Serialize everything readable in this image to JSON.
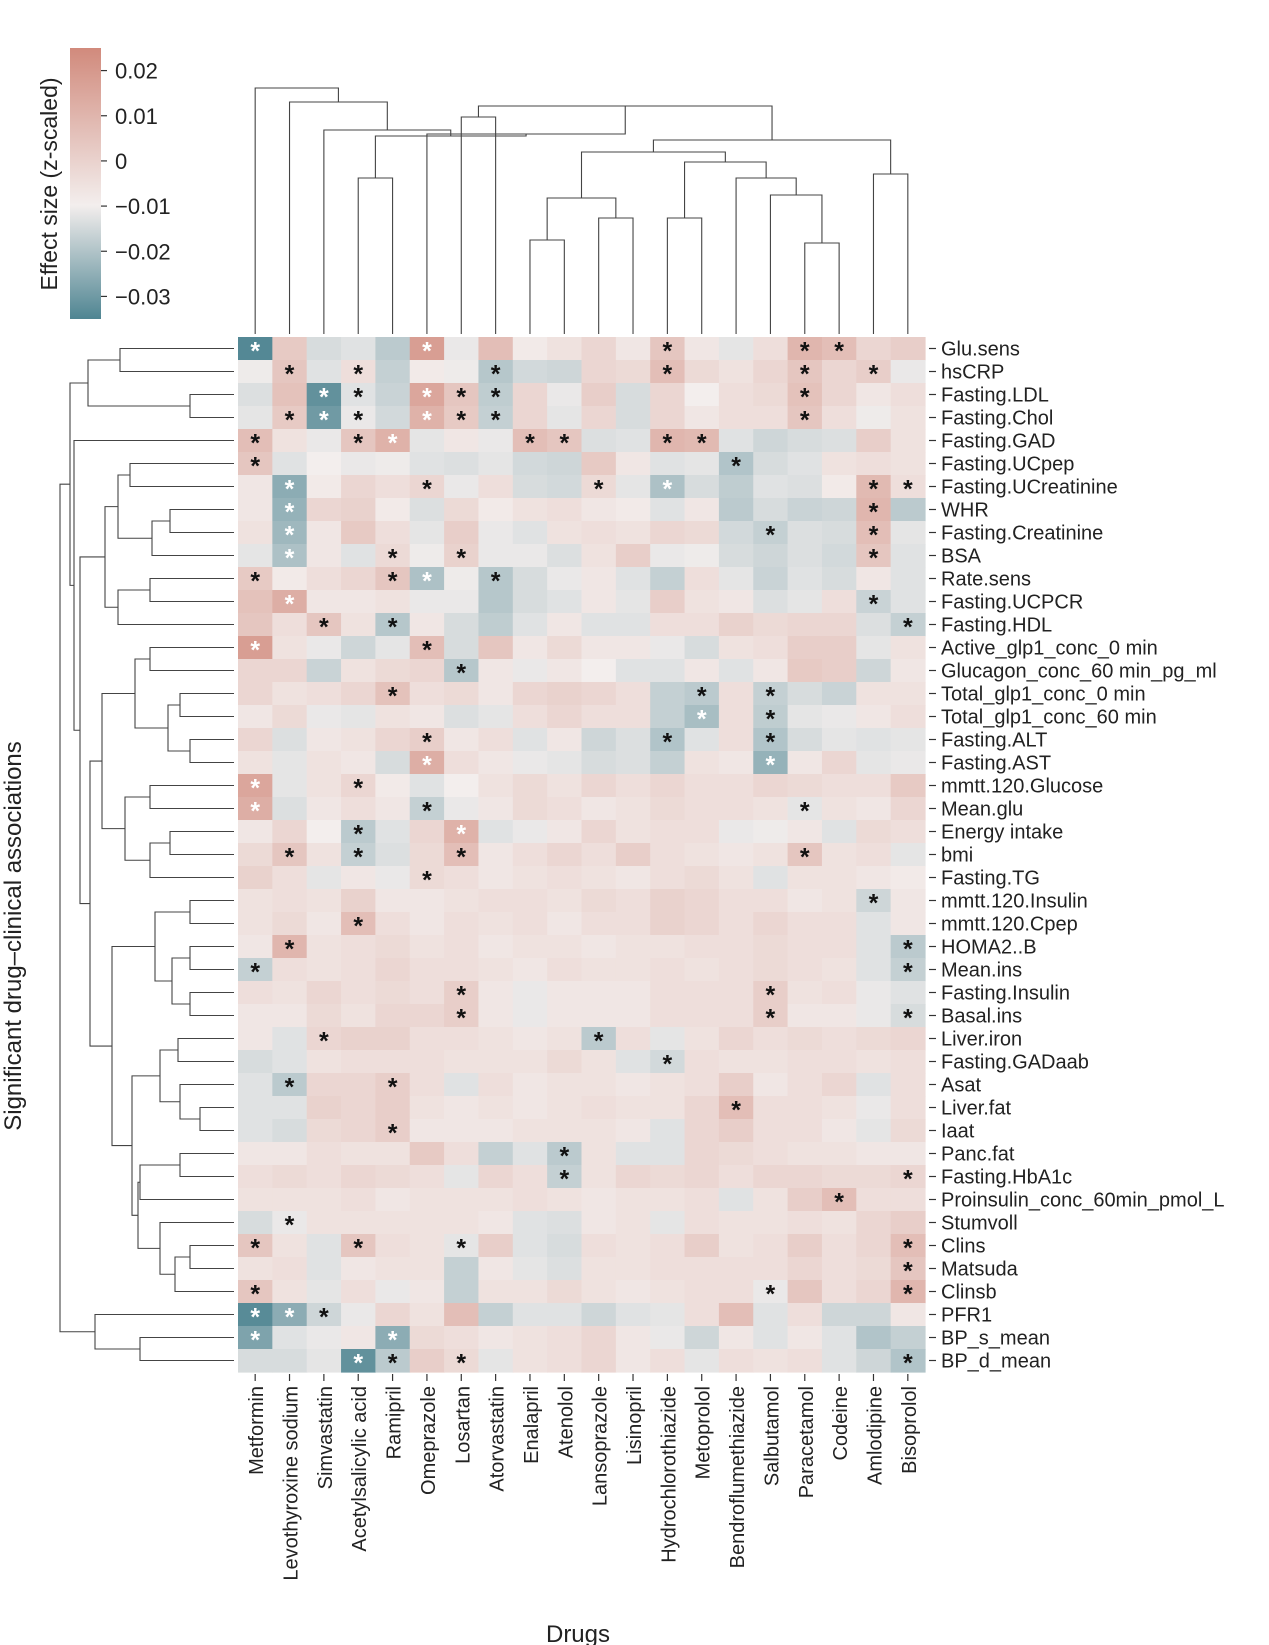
{
  "chart_data": {
    "type": "heatmap",
    "title": "",
    "xlabel": "Drugs",
    "ylabel": "Significant drug–clinical associations",
    "colorbar": {
      "label": "Effect size (z-scaled)",
      "ticks": [
        "0.02",
        "0.01",
        "0",
        "−0.01",
        "−0.02",
        "−0.03"
      ],
      "tick_values": [
        0.02,
        0.01,
        0,
        -0.01,
        -0.02,
        -0.03
      ],
      "range": [
        -0.035,
        0.025
      ],
      "colors": {
        "high": "#d18a7c",
        "mid": "#f3eeed",
        "low": "#4f8592"
      }
    },
    "significance_marker": "*",
    "columns": [
      "Metformin",
      "Levothyroxine sodium",
      "Simvastatin",
      "Acetylsalicylic acid",
      "Ramipril",
      "Omeprazole",
      "Losartan",
      "Atorvastatin",
      "Enalapril",
      "Atenolol",
      "Lansoprazole",
      "Lisinopril",
      "Hydrochlorothiazide",
      "Metoprolol",
      "Bendroflumethiazide",
      "Salbutamol",
      "Paracetamol",
      "Codeine",
      "Amlodipine",
      "Bisoprolol"
    ],
    "rows": [
      "Glu.sens",
      "hsCRP",
      "Fasting.LDL",
      "Fasting.Chol",
      "Fasting.GAD",
      "Fasting.UCpep",
      "Fasting.UCreatinine",
      "WHR",
      "Fasting.Creatinine",
      "BSA",
      "Rate.sens",
      "Fasting.UCPCR",
      "Fasting.HDL",
      "Active_glp1_conc_0 min",
      "Glucagon_conc_60 min_pg_ml",
      "Total_glp1_conc_0 min",
      "Total_glp1_conc_60 min",
      "Fasting.ALT",
      "Fasting.AST",
      "mmtt.120.Glucose",
      "Mean.glu",
      "Energy intake",
      "bmi",
      "Fasting.TG",
      "mmtt.120.Insulin",
      "mmtt.120.Cpep",
      "HOMA2..B",
      "Mean.ins",
      "Fasting.Insulin",
      "Basal.ins",
      "Liver.iron",
      "Fasting.GADaab",
      "Asat",
      "Liver.fat",
      "Iaat",
      "Panc.fat",
      "Fasting.HbA1c",
      "Proinsulin_conc_60min_pmol_L",
      "Stumvoll",
      "Clins",
      "Matsuda",
      "Clinsb",
      "PFR1",
      "BP_s_mean",
      "BP_d_mean"
    ],
    "values": [
      [
        -0.034,
        0.009,
        -0.006,
        -0.004,
        -0.012,
        0.02,
        -0.002,
        0.012,
        0.001,
        0.003,
        0.006,
        0.002,
        0.01,
        0.002,
        -0.003,
        0.004,
        0.014,
        0.012,
        0.006,
        0.008
      ],
      [
        -0.001,
        0.01,
        -0.004,
        0.004,
        -0.01,
        0.001,
        -0.001,
        -0.013,
        -0.007,
        -0.008,
        0.006,
        0.005,
        0.012,
        0.005,
        0.003,
        0.006,
        0.01,
        0.006,
        0.008,
        -0.002
      ],
      [
        -0.005,
        0.011,
        -0.031,
        -0.004,
        -0.009,
        0.018,
        0.01,
        -0.011,
        0.006,
        -0.002,
        0.008,
        -0.006,
        0.006,
        0.0,
        0.004,
        0.005,
        0.011,
        0.006,
        0.002,
        0.004
      ],
      [
        -0.003,
        0.009,
        -0.028,
        -0.002,
        -0.007,
        0.015,
        0.009,
        -0.01,
        0.006,
        -0.003,
        0.006,
        -0.006,
        0.006,
        0.002,
        0.004,
        0.004,
        0.01,
        0.004,
        -0.001,
        0.003
      ],
      [
        0.012,
        0.003,
        -0.002,
        0.01,
        0.015,
        -0.003,
        0.002,
        -0.002,
        0.012,
        0.01,
        -0.005,
        -0.004,
        0.014,
        0.013,
        -0.004,
        -0.008,
        -0.006,
        -0.005,
        0.008,
        0.003
      ],
      [
        0.01,
        -0.004,
        0.0,
        -0.002,
        -0.001,
        -0.004,
        -0.005,
        -0.003,
        -0.007,
        -0.008,
        0.009,
        0.002,
        -0.004,
        -0.003,
        -0.014,
        -0.006,
        -0.004,
        0.003,
        0.004,
        0.003
      ],
      [
        0.002,
        -0.022,
        0.001,
        0.006,
        0.004,
        0.006,
        -0.002,
        0.004,
        -0.006,
        -0.007,
        0.005,
        -0.003,
        -0.015,
        -0.006,
        -0.011,
        -0.004,
        -0.005,
        0.001,
        0.013,
        0.004
      ],
      [
        0.002,
        -0.02,
        0.006,
        0.007,
        0.001,
        -0.005,
        0.005,
        0.001,
        0.003,
        0.004,
        0.002,
        0.001,
        -0.004,
        0.002,
        -0.012,
        -0.006,
        -0.009,
        -0.008,
        0.014,
        -0.012
      ],
      [
        0.003,
        -0.018,
        0.002,
        0.009,
        0.004,
        -0.003,
        0.008,
        -0.002,
        -0.004,
        0.003,
        0.004,
        0.003,
        0.006,
        0.005,
        -0.007,
        -0.01,
        -0.005,
        -0.006,
        0.012,
        -0.003
      ],
      [
        -0.003,
        -0.015,
        0.002,
        -0.004,
        0.005,
        -0.001,
        0.007,
        -0.002,
        -0.002,
        -0.005,
        0.003,
        0.008,
        -0.002,
        -0.001,
        -0.006,
        -0.008,
        -0.005,
        -0.007,
        0.01,
        -0.004
      ],
      [
        0.009,
        0.001,
        0.004,
        0.006,
        0.01,
        -0.015,
        -0.001,
        -0.013,
        -0.006,
        -0.002,
        0.002,
        -0.004,
        -0.01,
        0.004,
        -0.003,
        -0.009,
        -0.004,
        -0.006,
        0.002,
        -0.004
      ],
      [
        0.011,
        0.016,
        0.002,
        0.002,
        0.003,
        -0.002,
        -0.002,
        -0.013,
        -0.006,
        -0.004,
        0.002,
        -0.003,
        0.008,
        0.003,
        0.002,
        -0.005,
        -0.003,
        0.004,
        -0.009,
        -0.004
      ],
      [
        0.01,
        0.004,
        0.01,
        0.003,
        -0.013,
        0.002,
        -0.006,
        -0.011,
        -0.004,
        0.002,
        -0.004,
        -0.004,
        0.004,
        0.004,
        0.007,
        0.005,
        0.006,
        0.006,
        -0.005,
        -0.01
      ],
      [
        0.02,
        0.003,
        -0.002,
        -0.008,
        -0.003,
        0.012,
        -0.006,
        0.01,
        0.002,
        0.005,
        0.002,
        0.002,
        -0.002,
        -0.006,
        0.003,
        0.004,
        0.008,
        0.008,
        -0.003,
        0.003
      ],
      [
        0.006,
        0.006,
        -0.009,
        0.003,
        0.005,
        0.006,
        -0.013,
        0.002,
        -0.002,
        0.002,
        0.0,
        -0.004,
        -0.004,
        0.002,
        -0.004,
        0.002,
        0.009,
        0.008,
        -0.008,
        0.002
      ],
      [
        0.006,
        0.003,
        0.004,
        0.006,
        0.011,
        0.004,
        0.005,
        0.002,
        0.006,
        0.007,
        0.006,
        0.004,
        -0.01,
        -0.012,
        0.004,
        -0.01,
        -0.006,
        -0.009,
        0.003,
        0.003
      ],
      [
        0.002,
        0.005,
        -0.002,
        -0.003,
        0.003,
        0.002,
        -0.005,
        -0.003,
        0.004,
        0.006,
        0.004,
        0.004,
        -0.01,
        -0.016,
        0.004,
        -0.011,
        -0.003,
        -0.002,
        0.002,
        0.004
      ],
      [
        0.006,
        -0.005,
        0.002,
        0.003,
        0.006,
        0.008,
        0.002,
        0.004,
        -0.004,
        0.002,
        -0.008,
        -0.005,
        -0.014,
        -0.004,
        0.004,
        -0.014,
        -0.006,
        -0.003,
        -0.004,
        -0.003
      ],
      [
        0.003,
        -0.003,
        0.003,
        0.002,
        -0.006,
        0.016,
        0.004,
        0.002,
        -0.002,
        -0.003,
        -0.006,
        -0.005,
        -0.01,
        0.003,
        0.002,
        -0.02,
        0.002,
        0.006,
        -0.003,
        -0.002
      ],
      [
        0.018,
        -0.003,
        0.003,
        0.006,
        0.001,
        -0.004,
        0.0,
        0.003,
        0.005,
        0.003,
        0.006,
        0.004,
        0.006,
        0.004,
        0.004,
        0.006,
        0.005,
        0.004,
        0.004,
        0.009
      ],
      [
        0.016,
        -0.005,
        0.002,
        0.004,
        0.002,
        -0.01,
        -0.002,
        0.002,
        0.005,
        0.004,
        0.002,
        0.003,
        0.005,
        0.004,
        0.004,
        0.003,
        -0.003,
        0.003,
        0.002,
        0.006
      ],
      [
        0.002,
        0.006,
        0.0,
        -0.012,
        -0.004,
        0.006,
        0.015,
        -0.004,
        -0.002,
        0.002,
        0.006,
        0.003,
        0.004,
        0.004,
        -0.002,
        -0.001,
        0.002,
        -0.004,
        0.005,
        0.004
      ],
      [
        0.005,
        0.01,
        0.003,
        -0.01,
        -0.005,
        0.005,
        0.012,
        0.002,
        0.004,
        0.006,
        0.004,
        0.008,
        0.004,
        0.003,
        0.002,
        0.003,
        0.01,
        0.003,
        0.004,
        -0.003
      ],
      [
        0.007,
        0.004,
        -0.003,
        0.002,
        -0.002,
        0.005,
        0.004,
        0.002,
        0.003,
        0.004,
        0.003,
        0.002,
        0.004,
        0.005,
        0.003,
        -0.004,
        0.003,
        0.003,
        0.002,
        0.001
      ],
      [
        0.003,
        0.004,
        0.003,
        0.007,
        0.002,
        0.002,
        0.003,
        0.004,
        0.004,
        0.003,
        0.005,
        0.004,
        0.007,
        0.006,
        0.004,
        0.004,
        0.002,
        0.003,
        -0.008,
        0.002
      ],
      [
        0.003,
        0.005,
        0.002,
        0.012,
        0.004,
        0.002,
        0.004,
        0.003,
        0.004,
        0.002,
        0.004,
        0.004,
        0.007,
        0.006,
        0.004,
        0.006,
        0.004,
        0.004,
        -0.004,
        0.002
      ],
      [
        0.002,
        0.014,
        0.003,
        0.004,
        0.005,
        0.003,
        0.004,
        0.002,
        0.003,
        0.003,
        0.002,
        0.003,
        0.003,
        0.004,
        0.004,
        0.005,
        0.004,
        0.004,
        -0.004,
        -0.012
      ],
      [
        -0.01,
        0.004,
        0.003,
        0.004,
        0.006,
        0.004,
        0.004,
        0.003,
        0.002,
        0.004,
        0.003,
        0.003,
        0.004,
        0.003,
        0.004,
        0.005,
        0.004,
        0.003,
        -0.004,
        -0.01
      ],
      [
        0.004,
        0.003,
        0.006,
        0.004,
        0.005,
        0.004,
        0.008,
        0.002,
        -0.002,
        0.002,
        0.002,
        0.002,
        0.004,
        0.004,
        0.004,
        0.008,
        0.003,
        0.004,
        -0.002,
        -0.004
      ],
      [
        0.002,
        0.002,
        0.005,
        0.003,
        0.006,
        0.006,
        0.008,
        0.002,
        -0.002,
        0.002,
        0.002,
        0.002,
        0.004,
        0.004,
        0.004,
        0.008,
        0.002,
        0.002,
        -0.002,
        -0.006
      ],
      [
        0.002,
        -0.004,
        0.006,
        0.007,
        0.007,
        0.004,
        0.004,
        0.003,
        0.002,
        0.003,
        -0.012,
        0.004,
        -0.003,
        0.003,
        0.006,
        0.004,
        0.005,
        0.004,
        0.005,
        0.006
      ],
      [
        -0.006,
        -0.004,
        0.003,
        0.004,
        0.004,
        0.004,
        0.003,
        0.003,
        0.003,
        0.005,
        0.003,
        -0.004,
        -0.007,
        0.004,
        0.003,
        0.003,
        0.004,
        0.004,
        0.003,
        0.004
      ],
      [
        -0.004,
        -0.012,
        0.006,
        0.006,
        0.008,
        0.004,
        -0.004,
        0.004,
        0.002,
        0.003,
        0.003,
        0.002,
        0.003,
        0.004,
        0.008,
        0.002,
        0.004,
        0.006,
        -0.004,
        0.004
      ],
      [
        -0.004,
        -0.004,
        0.007,
        0.006,
        0.008,
        0.003,
        0.002,
        0.003,
        0.002,
        0.003,
        0.004,
        0.003,
        0.003,
        0.006,
        0.012,
        0.004,
        0.004,
        0.003,
        -0.002,
        0.004
      ],
      [
        -0.004,
        -0.006,
        0.005,
        0.006,
        0.008,
        0.002,
        0.002,
        0.002,
        0.003,
        0.003,
        0.003,
        0.002,
        -0.004,
        0.006,
        0.008,
        0.004,
        0.004,
        0.002,
        -0.003,
        0.005
      ],
      [
        0.002,
        0.002,
        0.004,
        0.003,
        0.003,
        0.009,
        0.004,
        -0.01,
        -0.004,
        -0.012,
        0.003,
        -0.004,
        -0.004,
        0.006,
        0.005,
        0.004,
        0.003,
        0.003,
        0.002,
        0.002
      ],
      [
        0.004,
        0.005,
        0.004,
        0.006,
        0.005,
        0.004,
        -0.003,
        0.006,
        0.004,
        -0.01,
        0.003,
        0.006,
        0.005,
        0.006,
        0.004,
        0.006,
        0.006,
        0.005,
        0.005,
        0.006
      ],
      [
        0.003,
        0.003,
        0.003,
        0.004,
        0.002,
        0.003,
        0.003,
        0.003,
        0.004,
        0.003,
        0.002,
        0.003,
        0.003,
        0.004,
        -0.004,
        0.003,
        0.008,
        0.012,
        0.004,
        0.004
      ],
      [
        -0.006,
        -0.002,
        0.003,
        0.003,
        0.003,
        0.003,
        0.003,
        0.002,
        -0.004,
        -0.005,
        0.002,
        0.003,
        -0.003,
        0.004,
        0.003,
        0.003,
        0.004,
        0.003,
        0.006,
        0.008
      ],
      [
        0.01,
        0.003,
        -0.004,
        0.01,
        0.004,
        0.003,
        -0.003,
        0.008,
        -0.004,
        -0.006,
        0.004,
        0.003,
        0.004,
        0.008,
        0.003,
        0.004,
        0.008,
        0.004,
        0.006,
        0.012
      ],
      [
        0.003,
        0.004,
        -0.004,
        0.002,
        0.003,
        0.003,
        -0.01,
        0.002,
        -0.003,
        -0.005,
        0.003,
        0.003,
        0.004,
        0.004,
        0.004,
        0.004,
        0.006,
        0.004,
        0.005,
        0.01
      ],
      [
        0.01,
        0.003,
        -0.003,
        0.004,
        -0.002,
        0.002,
        -0.01,
        0.003,
        0.003,
        0.005,
        0.003,
        0.002,
        0.003,
        0.004,
        0.004,
        -0.002,
        0.01,
        0.004,
        0.006,
        0.014
      ],
      [
        -0.033,
        -0.022,
        -0.008,
        -0.002,
        0.006,
        0.003,
        0.012,
        -0.01,
        -0.004,
        -0.004,
        -0.008,
        -0.004,
        -0.003,
        0.004,
        0.012,
        -0.004,
        0.004,
        -0.008,
        -0.008,
        0.002
      ],
      [
        -0.025,
        -0.004,
        -0.002,
        0.002,
        -0.022,
        0.005,
        0.004,
        0.002,
        0.003,
        0.004,
        0.006,
        0.002,
        -0.002,
        -0.008,
        0.002,
        -0.004,
        0.002,
        -0.004,
        -0.014,
        -0.01
      ],
      [
        -0.006,
        -0.006,
        -0.003,
        -0.031,
        -0.012,
        0.008,
        0.005,
        -0.003,
        0.003,
        0.004,
        0.006,
        0.002,
        0.004,
        -0.003,
        0.004,
        0.003,
        0.004,
        -0.004,
        -0.008,
        -0.014
      ]
    ],
    "significant": [
      [
        0,
        5,
        12,
        16,
        17
      ],
      [
        1,
        3,
        7,
        12,
        16,
        18
      ],
      [
        2,
        3,
        5,
        6,
        7,
        16
      ],
      [
        1,
        2,
        3,
        5,
        6,
        7,
        16
      ],
      [
        0,
        3,
        4,
        8,
        9,
        12,
        13
      ],
      [
        0,
        14
      ],
      [
        1,
        5,
        10,
        12,
        18,
        19
      ],
      [
        1,
        18
      ],
      [
        1,
        15,
        18
      ],
      [
        1,
        4,
        6,
        18
      ],
      [
        0,
        4,
        5,
        7
      ],
      [
        1,
        18
      ],
      [
        2,
        4,
        19
      ],
      [
        0,
        5
      ],
      [
        6
      ],
      [
        4,
        13,
        15
      ],
      [
        13,
        15
      ],
      [
        5,
        12,
        15
      ],
      [
        5,
        15
      ],
      [
        0,
        3
      ],
      [
        0,
        5,
        16
      ],
      [
        3,
        6
      ],
      [
        1,
        3,
        6,
        16
      ],
      [
        5
      ],
      [
        18
      ],
      [
        3
      ],
      [
        1,
        19
      ],
      [
        0,
        19
      ],
      [
        6,
        15
      ],
      [
        6,
        15,
        19
      ],
      [
        2,
        10
      ],
      [
        12
      ],
      [
        1,
        4
      ],
      [
        14
      ],
      [
        4
      ],
      [
        9
      ],
      [
        9,
        19
      ],
      [
        17
      ],
      [
        1
      ],
      [
        0,
        3,
        6,
        19
      ],
      [
        19
      ],
      [
        0,
        15,
        19
      ],
      [
        0,
        1,
        2
      ],
      [
        0,
        4
      ],
      [
        3,
        4,
        6,
        19
      ]
    ]
  }
}
